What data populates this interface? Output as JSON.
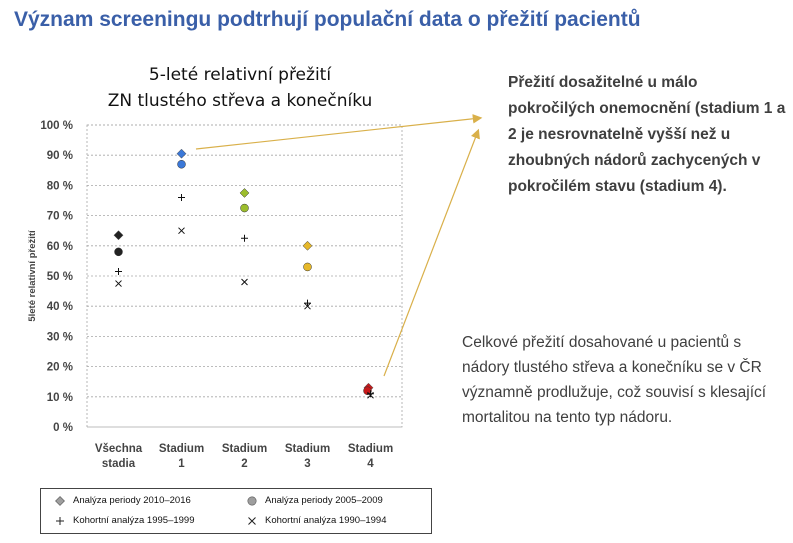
{
  "slide": {
    "title": "Význam screeningu podtrhují populační data o přežití pacientů"
  },
  "notes": {
    "top": "Přežití dosažitelné u málo pokročilých onemocnění (stadium 1 a 2 je nesrovnatelně vyšší než u zhoubných nádorů zachycených v pokročilém stavu (stadium 4).",
    "bottom": "Celkové přežití dosahované u pacientů s nádory tlustého střeva a konečníku se v ČR významně prodlužuje, což souvisí s klesající mortalitou na tento typ nádoru."
  },
  "colors": {
    "title": "#3a5fa8",
    "arrow": "#d9b04a",
    "grid": "#a6a6a6",
    "all_stages": "#222222",
    "stage1": "#3b78d8",
    "stage2": "#9cbd2d",
    "stage3": "#e6b82a",
    "stage4": "#c8191a",
    "legend_marker": "#9e9e9e"
  },
  "chart_data": {
    "type": "scatter",
    "title_lines": [
      "5-leté relativní přežití",
      "ZN tlustého střeva a konečníku"
    ],
    "ylabel": "5leté relativní přežití",
    "ylim": [
      0,
      100
    ],
    "yticks": [
      0,
      10,
      20,
      30,
      40,
      50,
      60,
      70,
      80,
      90,
      100
    ],
    "ytick_labels": [
      "0 %",
      "10 %",
      "20 %",
      "30 %",
      "40 %",
      "50 %",
      "60 %",
      "70 %",
      "80 %",
      "90 %",
      "100 %"
    ],
    "categories": [
      [
        "Všechna",
        "stadia"
      ],
      [
        "Stadium",
        "1"
      ],
      [
        "Stadium",
        "2"
      ],
      [
        "Stadium",
        "3"
      ],
      [
        "Stadium",
        "4"
      ]
    ],
    "grid": true,
    "legend_position": "bottom",
    "series": [
      {
        "name": "Analýza periody 2010–2016",
        "marker": "diamond",
        "values": [
          63.5,
          90.5,
          77.5,
          60,
          13
        ]
      },
      {
        "name": "Analýza periody 2005–2009",
        "marker": "circle",
        "values": [
          58,
          87,
          72.5,
          53,
          12
        ]
      },
      {
        "name": "Kohortní analýza 1995–1999",
        "marker": "plus",
        "values": [
          51.5,
          76,
          62.5,
          41,
          11
        ]
      },
      {
        "name": "Kohortní analýza 1990–1994",
        "marker": "x",
        "values": [
          47.5,
          65,
          48,
          40,
          10.5
        ]
      }
    ]
  }
}
